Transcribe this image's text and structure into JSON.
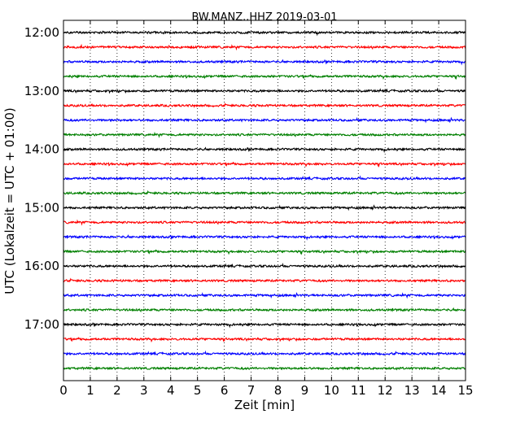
{
  "chart_data": {
    "type": "line",
    "title": "BW.MANZ..HHZ 2019-03-01",
    "xlabel": "Zeit  [min]",
    "ylabel": "UTC (Lokalzeit = UTC + 01:00)",
    "xlim": [
      0,
      15
    ],
    "x_ticks": [
      "0",
      "1",
      "2",
      "3",
      "4",
      "5",
      "6",
      "7",
      "8",
      "9",
      "10",
      "11",
      "12",
      "13",
      "14",
      "15"
    ],
    "y_tick_labels": [
      "12:00",
      "13:00",
      "14:00",
      "15:00",
      "16:00",
      "17:00"
    ],
    "grid": "vertical dotted lines at each minute",
    "start_time": "12:00",
    "trace_interval_min": 15,
    "trace_colors": [
      "#000000",
      "#ff0000",
      "#0000ff",
      "#008000"
    ],
    "traces": [
      {
        "start": "12:00",
        "color": "#000000"
      },
      {
        "start": "12:15",
        "color": "#ff0000"
      },
      {
        "start": "12:30",
        "color": "#0000ff"
      },
      {
        "start": "12:45",
        "color": "#008000"
      },
      {
        "start": "13:00",
        "color": "#000000"
      },
      {
        "start": "13:15",
        "color": "#ff0000"
      },
      {
        "start": "13:30",
        "color": "#0000ff"
      },
      {
        "start": "13:45",
        "color": "#008000"
      },
      {
        "start": "14:00",
        "color": "#000000"
      },
      {
        "start": "14:15",
        "color": "#ff0000"
      },
      {
        "start": "14:30",
        "color": "#0000ff"
      },
      {
        "start": "14:45",
        "color": "#008000"
      },
      {
        "start": "15:00",
        "color": "#000000"
      },
      {
        "start": "15:15",
        "color": "#ff0000"
      },
      {
        "start": "15:30",
        "color": "#0000ff"
      },
      {
        "start": "15:45",
        "color": "#008000"
      },
      {
        "start": "16:00",
        "color": "#000000"
      },
      {
        "start": "16:15",
        "color": "#ff0000"
      },
      {
        "start": "16:30",
        "color": "#0000ff"
      },
      {
        "start": "16:45",
        "color": "#008000"
      },
      {
        "start": "17:00",
        "color": "#000000"
      },
      {
        "start": "17:15",
        "color": "#ff0000"
      },
      {
        "start": "17:30",
        "color": "#0000ff"
      },
      {
        "start": "17:45",
        "color": "#008000"
      }
    ]
  }
}
